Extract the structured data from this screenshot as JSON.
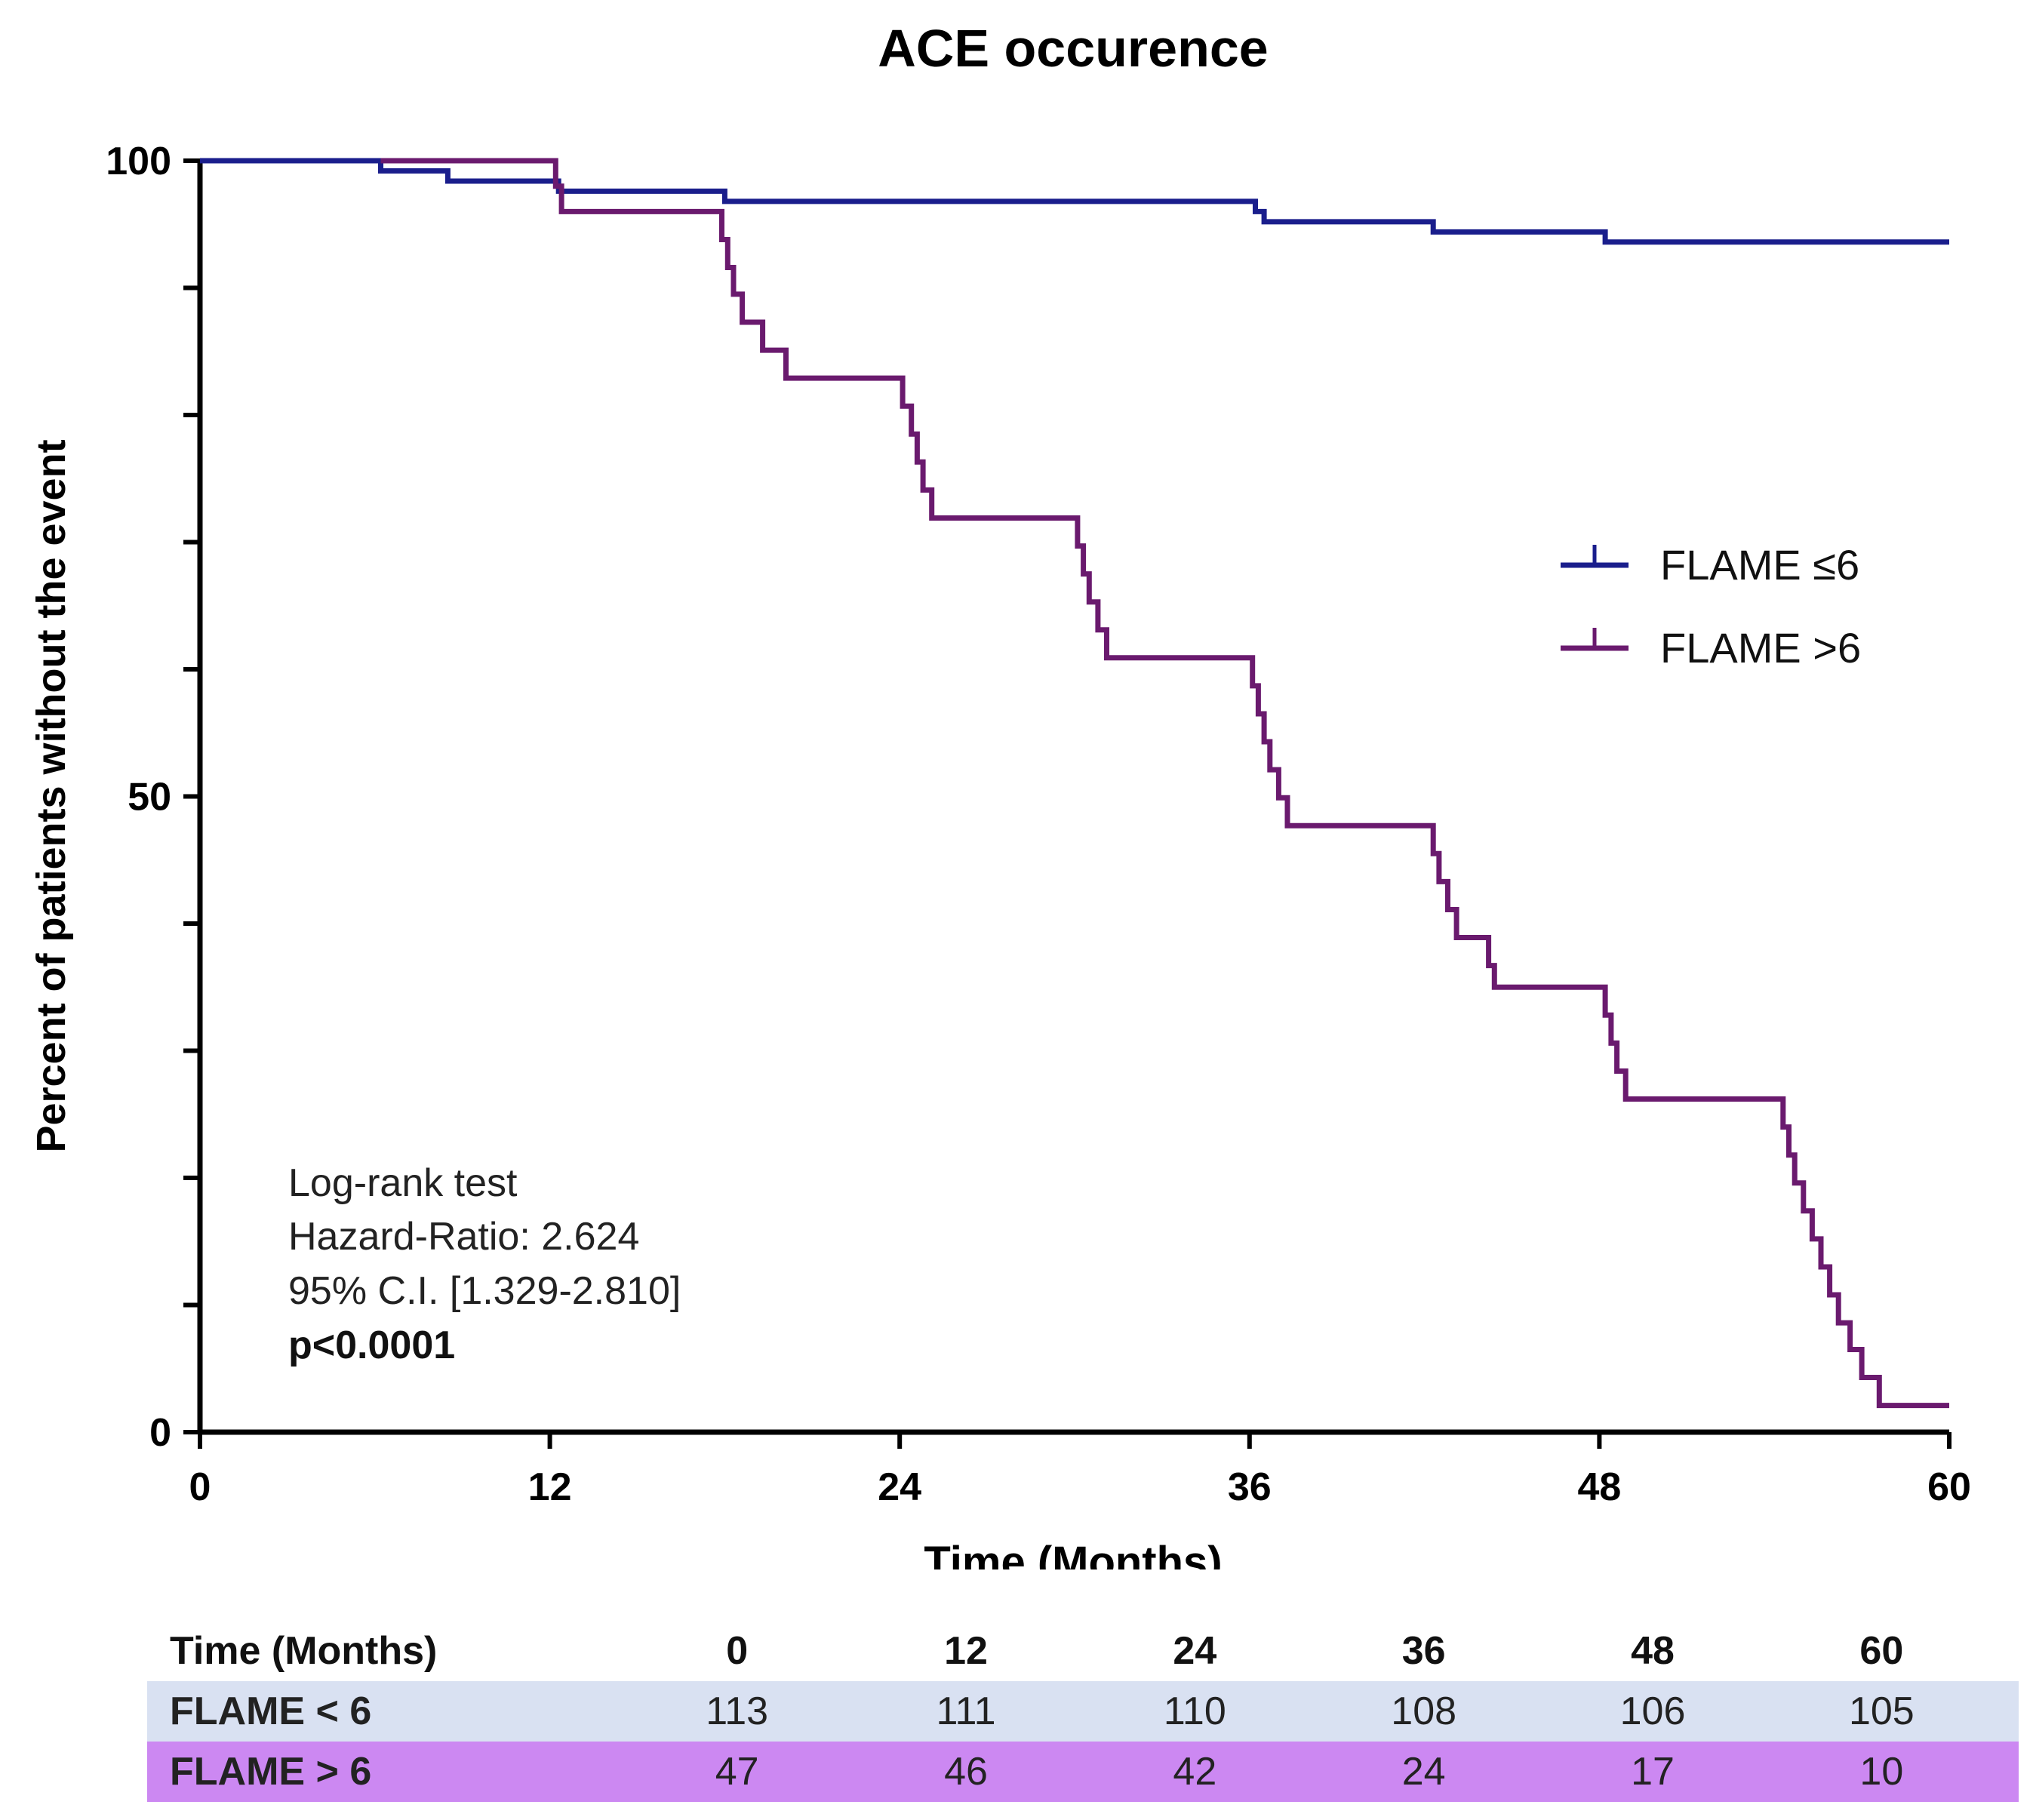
{
  "chart_data": {
    "type": "line",
    "title": "ACE occurence",
    "xlabel": "Time (Months)",
    "ylabel": "Percent of patients without the event",
    "xlim": [
      0,
      60
    ],
    "ylim": [
      0,
      100
    ],
    "x_ticks": [
      "0",
      "12",
      "24",
      "36",
      "48",
      "60"
    ],
    "y_ticks": [
      "0",
      "50",
      "100"
    ],
    "series": [
      {
        "name": "FLAME ≤6",
        "color": "#1a1e8c",
        "points": [
          [
            0,
            100
          ],
          [
            6.2,
            100
          ],
          [
            6.2,
            99.2
          ],
          [
            8.5,
            99.2
          ],
          [
            8.5,
            98.4
          ],
          [
            12.3,
            98.4
          ],
          [
            12.3,
            97.6
          ],
          [
            18,
            97.6
          ],
          [
            18,
            96.8
          ],
          [
            36.2,
            96.8
          ],
          [
            36.2,
            96.0
          ],
          [
            36.5,
            96.0
          ],
          [
            36.5,
            95.2
          ],
          [
            42.3,
            95.2
          ],
          [
            42.3,
            94.4
          ],
          [
            48.2,
            94.4
          ],
          [
            48.2,
            93.6
          ],
          [
            60,
            93.6
          ]
        ]
      },
      {
        "name": "FLAME >6",
        "color": "#6a1a6e",
        "points": [
          [
            6.2,
            100
          ],
          [
            12.2,
            100
          ],
          [
            12.2,
            98.0
          ],
          [
            12.4,
            98.0
          ],
          [
            12.4,
            96.0
          ],
          [
            17.9,
            96.0
          ],
          [
            17.9,
            93.8
          ],
          [
            18.1,
            93.8
          ],
          [
            18.1,
            91.6
          ],
          [
            18.3,
            91.6
          ],
          [
            18.3,
            89.5
          ],
          [
            18.6,
            89.5
          ],
          [
            18.6,
            87.3
          ],
          [
            19.3,
            87.3
          ],
          [
            19.3,
            85.1
          ],
          [
            20.1,
            85.1
          ],
          [
            20.1,
            82.9
          ],
          [
            24.1,
            82.9
          ],
          [
            24.1,
            80.7
          ],
          [
            24.4,
            80.7
          ],
          [
            24.4,
            78.5
          ],
          [
            24.6,
            78.5
          ],
          [
            24.6,
            76.3
          ],
          [
            24.8,
            76.3
          ],
          [
            24.8,
            74.1
          ],
          [
            25.1,
            74.1
          ],
          [
            25.1,
            71.9
          ],
          [
            30.1,
            71.9
          ],
          [
            30.1,
            69.7
          ],
          [
            30.3,
            69.7
          ],
          [
            30.3,
            67.5
          ],
          [
            30.5,
            67.5
          ],
          [
            30.5,
            65.3
          ],
          [
            30.8,
            65.3
          ],
          [
            30.8,
            63.1
          ],
          [
            31.1,
            63.1
          ],
          [
            31.1,
            60.9
          ],
          [
            36.1,
            60.9
          ],
          [
            36.1,
            58.7
          ],
          [
            36.3,
            58.7
          ],
          [
            36.3,
            56.5
          ],
          [
            36.5,
            56.5
          ],
          [
            36.5,
            54.3
          ],
          [
            36.7,
            54.3
          ],
          [
            36.7,
            52.1
          ],
          [
            37.0,
            52.1
          ],
          [
            37.0,
            49.9
          ],
          [
            37.3,
            49.9
          ],
          [
            37.3,
            47.7
          ],
          [
            42.3,
            47.7
          ],
          [
            42.3,
            45.5
          ],
          [
            42.5,
            45.5
          ],
          [
            42.5,
            43.3
          ],
          [
            42.8,
            43.3
          ],
          [
            42.8,
            41.1
          ],
          [
            43.1,
            41.1
          ],
          [
            43.1,
            38.9
          ],
          [
            44.2,
            38.9
          ],
          [
            44.2,
            36.7
          ],
          [
            44.4,
            36.7
          ],
          [
            44.4,
            35.0
          ],
          [
            48.2,
            35.0
          ],
          [
            48.2,
            32.8
          ],
          [
            48.4,
            32.8
          ],
          [
            48.4,
            30.6
          ],
          [
            48.6,
            30.6
          ],
          [
            48.6,
            28.4
          ],
          [
            48.9,
            28.4
          ],
          [
            48.9,
            26.2
          ],
          [
            54.3,
            26.2
          ],
          [
            54.3,
            24.0
          ],
          [
            54.5,
            24.0
          ],
          [
            54.5,
            21.8
          ],
          [
            54.7,
            21.8
          ],
          [
            54.7,
            19.6
          ],
          [
            55.0,
            19.6
          ],
          [
            55.0,
            17.4
          ],
          [
            55.3,
            17.4
          ],
          [
            55.3,
            15.2
          ],
          [
            55.6,
            15.2
          ],
          [
            55.6,
            13.0
          ],
          [
            55.9,
            13.0
          ],
          [
            55.9,
            10.8
          ],
          [
            56.2,
            10.8
          ],
          [
            56.2,
            8.6
          ],
          [
            56.6,
            8.6
          ],
          [
            56.6,
            6.5
          ],
          [
            57.0,
            6.5
          ],
          [
            57.0,
            4.3
          ],
          [
            57.6,
            4.3
          ],
          [
            57.6,
            2.1
          ],
          [
            60,
            2.1
          ]
        ]
      }
    ],
    "legend": {
      "position": "right",
      "entries": [
        "FLAME ≤6",
        "FLAME >6"
      ]
    },
    "annotation": {
      "line1": "Log-rank test",
      "line2": "Hazard-Ratio: 2.624",
      "line3": "95% C.I. [1.329-2.810]",
      "line4": "p<0.0001"
    }
  },
  "risk_table": {
    "header_label": "Time (Months)",
    "times": [
      "0",
      "12",
      "24",
      "36",
      "48",
      "60"
    ],
    "rows": [
      {
        "label": "FLAME < 6",
        "values": [
          "113",
          "111",
          "110",
          "108",
          "106",
          "105"
        ]
      },
      {
        "label": "FLAME > 6",
        "values": [
          "47",
          "46",
          "42",
          "24",
          "17",
          "10"
        ]
      }
    ]
  }
}
